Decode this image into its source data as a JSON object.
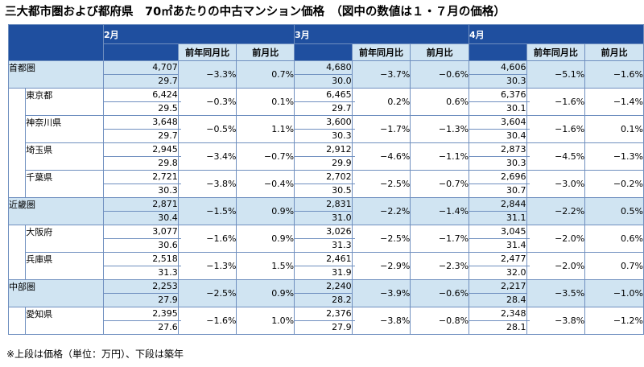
{
  "title": "三大都市圏および都府県　70㎡あたりの中古マンション価格　（図中の数値は１・７月の価格）",
  "months": [
    "2月",
    "3月",
    "4月"
  ],
  "sub_headers": [
    "前年同月比",
    "前月比"
  ],
  "rows": [
    {
      "name": "首都圏",
      "level": "region",
      "values": [
        {
          "price": "4,707",
          "age": "29.7",
          "yoy": "−3.3%",
          "mom": "0.7%"
        },
        {
          "price": "4,680",
          "age": "30.0",
          "yoy": "−3.7%",
          "mom": "−0.6%"
        },
        {
          "price": "4,606",
          "age": "30.3",
          "yoy": "−5.1%",
          "mom": "−1.6%"
        }
      ]
    },
    {
      "name": "東京都",
      "level": "pref",
      "values": [
        {
          "price": "6,424",
          "age": "29.5",
          "yoy": "−0.3%",
          "mom": "0.1%"
        },
        {
          "price": "6,465",
          "age": "29.7",
          "yoy": "0.2%",
          "mom": "0.6%"
        },
        {
          "price": "6,376",
          "age": "30.1",
          "yoy": "−1.6%",
          "mom": "−1.4%"
        }
      ]
    },
    {
      "name": "神奈川県",
      "level": "pref",
      "values": [
        {
          "price": "3,648",
          "age": "29.7",
          "yoy": "−0.5%",
          "mom": "1.1%"
        },
        {
          "price": "3,600",
          "age": "30.3",
          "yoy": "−1.7%",
          "mom": "−1.3%"
        },
        {
          "price": "3,604",
          "age": "30.4",
          "yoy": "−1.6%",
          "mom": "0.1%"
        }
      ]
    },
    {
      "name": "埼玉県",
      "level": "pref",
      "values": [
        {
          "price": "2,945",
          "age": "29.8",
          "yoy": "−3.4%",
          "mom": "−0.7%"
        },
        {
          "price": "2,912",
          "age": "29.9",
          "yoy": "−4.6%",
          "mom": "−1.1%"
        },
        {
          "price": "2,873",
          "age": "30.3",
          "yoy": "−4.5%",
          "mom": "−1.3%"
        }
      ]
    },
    {
      "name": "千葉県",
      "level": "pref",
      "values": [
        {
          "price": "2,721",
          "age": "30.3",
          "yoy": "−3.8%",
          "mom": "−0.4%"
        },
        {
          "price": "2,702",
          "age": "30.5",
          "yoy": "−2.5%",
          "mom": "−0.7%"
        },
        {
          "price": "2,696",
          "age": "30.7",
          "yoy": "−3.0%",
          "mom": "−0.2%"
        }
      ]
    },
    {
      "name": "近畿圏",
      "level": "region",
      "values": [
        {
          "price": "2,871",
          "age": "30.4",
          "yoy": "−1.5%",
          "mom": "0.9%"
        },
        {
          "price": "2,831",
          "age": "31.0",
          "yoy": "−2.2%",
          "mom": "−1.4%"
        },
        {
          "price": "2,844",
          "age": "31.1",
          "yoy": "−2.2%",
          "mom": "0.5%"
        }
      ]
    },
    {
      "name": "大阪府",
      "level": "pref",
      "values": [
        {
          "price": "3,077",
          "age": "30.6",
          "yoy": "−1.6%",
          "mom": "0.9%"
        },
        {
          "price": "3,026",
          "age": "31.3",
          "yoy": "−2.5%",
          "mom": "−1.7%"
        },
        {
          "price": "3,045",
          "age": "31.4",
          "yoy": "−2.0%",
          "mom": "0.6%"
        }
      ]
    },
    {
      "name": "兵庫県",
      "level": "pref",
      "values": [
        {
          "price": "2,518",
          "age": "31.3",
          "yoy": "−1.3%",
          "mom": "1.5%"
        },
        {
          "price": "2,461",
          "age": "31.9",
          "yoy": "−2.9%",
          "mom": "−2.3%"
        },
        {
          "price": "2,477",
          "age": "32.0",
          "yoy": "−2.0%",
          "mom": "0.7%"
        }
      ]
    },
    {
      "name": "中部圏",
      "level": "region",
      "values": [
        {
          "price": "2,253",
          "age": "27.9",
          "yoy": "−2.5%",
          "mom": "0.9%"
        },
        {
          "price": "2,240",
          "age": "28.2",
          "yoy": "−3.9%",
          "mom": "−0.6%"
        },
        {
          "price": "2,217",
          "age": "28.4",
          "yoy": "−3.5%",
          "mom": "−1.0%"
        }
      ]
    },
    {
      "name": "愛知県",
      "level": "pref",
      "values": [
        {
          "price": "2,395",
          "age": "27.6",
          "yoy": "−1.6%",
          "mom": "1.0%"
        },
        {
          "price": "2,376",
          "age": "27.9",
          "yoy": "−3.8%",
          "mom": "−0.8%"
        },
        {
          "price": "2,348",
          "age": "28.1",
          "yoy": "−3.8%",
          "mom": "−1.2%"
        }
      ]
    }
  ],
  "note": "※上段は価格（単位：万円）、下段は築年",
  "colors": {
    "header": "#1f4f9f",
    "highlight": "#d0e4f2",
    "border": "#6f8fbf"
  }
}
